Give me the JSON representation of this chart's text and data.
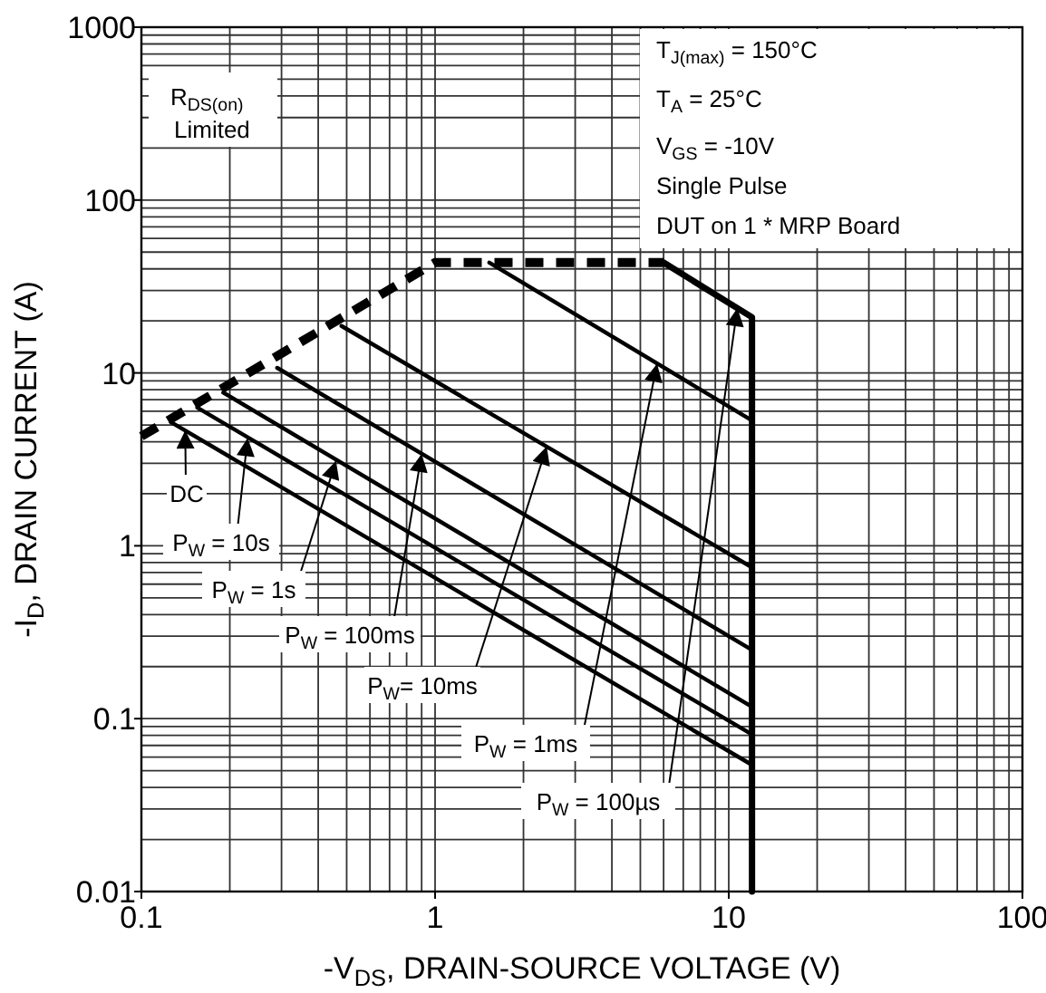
{
  "chart_data": {
    "type": "line",
    "xlabel": "-V$_{DS}$, DRAIN-SOURCE VOLTAGE (V)",
    "ylabel": "-I$_{D}$, DRAIN CURRENT (A)",
    "log": "xy",
    "grid": true,
    "line_style": "solid",
    "xlim": [
      0.1,
      100
    ],
    "xticks": [
      0.1,
      1,
      10,
      100
    ],
    "ylim": [
      0.01,
      1000
    ],
    "yticks": [
      0.01,
      0.1,
      1,
      10,
      100,
      1000
    ],
    "series": [
      {
        "color": "#000000",
        "line_style": "dashed",
        "x": [
          0.1,
          1,
          6
        ],
        "values": [
          4.3,
          43.5,
          43.5
        ]
      },
      {
        "color": "#000000",
        "x": [
          6,
          12,
          12
        ],
        "values": [
          43.5,
          21,
          0.01
        ]
      },
      {
        "color": "#000000",
        "x": [
          1.53,
          12
        ],
        "values": [
          43.5,
          5.3
        ]
      },
      {
        "color": "#000000",
        "x": [
          0.48,
          12
        ],
        "values": [
          18.7,
          0.75
        ]
      },
      {
        "color": "#000000",
        "x": [
          0.29,
          12
        ],
        "values": [
          10.7,
          0.25
        ]
      },
      {
        "color": "#000000",
        "x": [
          0.19,
          12
        ],
        "values": [
          7.7,
          0.117
        ]
      },
      {
        "color": "#000000",
        "x": [
          0.155,
          12
        ],
        "values": [
          6.3,
          0.081
        ]
      },
      {
        "color": "#000000",
        "x": [
          0.126,
          12
        ],
        "values": [
          5.2,
          0.054
        ]
      }
    ],
    "annotations": [
      "R$_{DS(on)}$",
      "Limited",
      "T$_{J(max)}$  =  150°C",
      "T$_{A}$  =  25°C",
      "V$_{GS}$ =  -10V",
      "Single Pulse",
      "DUT  on 1 * MRP Board",
      {
        "text": "DC",
        "x": 0.141,
        "y": 4.65
      },
      {
        "text": "P$_{W}$ = 10s",
        "x": 0.23,
        "y": 4.2
      },
      {
        "text": "P$_{W}$ = 1s",
        "x": 0.46,
        "y": 3.1
      },
      {
        "text": "P$_{W}$ = 100ms",
        "x": 0.9,
        "y": 3.4
      },
      {
        "text": "P$_{W}$= 10ms",
        "x": 2.4,
        "y": 3.75
      },
      {
        "text": "P$_{W}$  = 1ms",
        "x": 5.7,
        "y": 11.3
      },
      {
        "text": "P$_{W}$  = 100µs",
        "x": 10.7,
        "y": 23.7
      }
    ]
  }
}
